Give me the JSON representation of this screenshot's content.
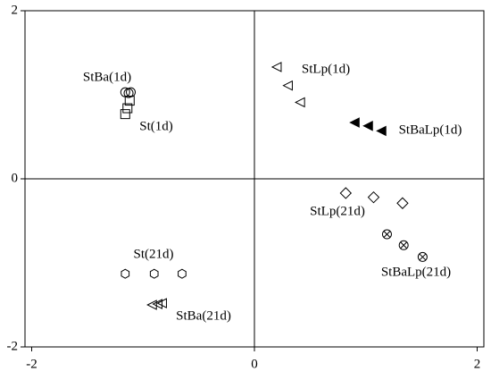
{
  "chart_data": {
    "type": "scatter",
    "xlim": [
      -2.06,
      2.06
    ],
    "ylim": [
      -2,
      2
    ],
    "xticks": [
      -2,
      0,
      2
    ],
    "yticks": [
      -2,
      0,
      2
    ],
    "series": [
      {
        "name": "StBa(1d)",
        "color": "#000000",
        "marker": "circle",
        "x": [
          -1.16,
          -1.13,
          -1.11
        ],
        "y": [
          1.03,
          1.02,
          1.03
        ]
      },
      {
        "name": "St(1d)",
        "color": "#000000",
        "marker": "square",
        "x": [
          -1.12,
          -1.14,
          -1.16
        ],
        "y": [
          0.93,
          0.84,
          0.77
        ]
      },
      {
        "name": "StLp(1d)",
        "color": "#000000",
        "marker": "triangle-left",
        "x": [
          0.2,
          0.3,
          0.41
        ],
        "y": [
          1.33,
          1.11,
          0.91
        ]
      },
      {
        "name": "StBaLp(1d)",
        "color": "#000000",
        "marker": "triangle-left-filled",
        "x": [
          0.9,
          1.02,
          1.14
        ],
        "y": [
          0.67,
          0.63,
          0.57
        ]
      },
      {
        "name": "St(21d)",
        "color": "#000000",
        "marker": "hexagon",
        "x": [
          -1.16,
          -0.9,
          -0.65
        ],
        "y": [
          -1.13,
          -1.13,
          -1.13
        ]
      },
      {
        "name": "StBa(21d)",
        "color": "#000000",
        "marker": "triangle-left",
        "x": [
          -0.92,
          -0.87,
          -0.83
        ],
        "y": [
          -1.5,
          -1.49,
          -1.48
        ]
      },
      {
        "name": "StLp(21d)",
        "color": "#000000",
        "marker": "diamond",
        "x": [
          0.82,
          1.07,
          1.33
        ],
        "y": [
          -0.17,
          -0.22,
          -0.29
        ]
      },
      {
        "name": "StBaLp(21d)",
        "color": "#000000",
        "marker": "circle-x",
        "x": [
          1.19,
          1.34,
          1.51
        ],
        "y": [
          -0.66,
          -0.79,
          -0.93
        ]
      }
    ]
  }
}
